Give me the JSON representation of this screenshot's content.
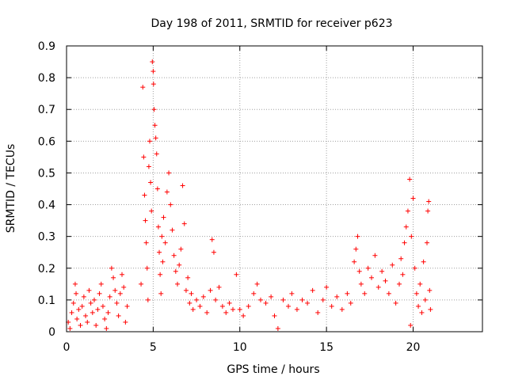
{
  "chart_data": {
    "type": "scatter",
    "title": "Day 198 of 2011, SRMTID for receiver p623",
    "xlabel": "GPS time / hours",
    "ylabel": "SRMTID / TECUs",
    "xlim": [
      0,
      24
    ],
    "ylim": [
      0,
      0.9
    ],
    "xticks": [
      0,
      5,
      10,
      15,
      20
    ],
    "xtick_labels": [
      "0",
      "5",
      "10",
      "15",
      "20"
    ],
    "yticks": [
      0,
      0.1,
      0.2,
      0.3,
      0.4,
      0.5,
      0.6,
      0.7,
      0.8,
      0.9
    ],
    "ytick_labels": [
      "0",
      "0.1",
      "0.2",
      "0.3",
      "0.4",
      "0.5",
      "0.6",
      "0.7",
      "0.8",
      "0.9"
    ],
    "grid": true,
    "marker": "plus",
    "marker_color": "#ff0000",
    "series": [
      {
        "name": "SRMTID",
        "points": [
          [
            0.1,
            0.03
          ],
          [
            0.2,
            0.01
          ],
          [
            0.3,
            0.06
          ],
          [
            0.4,
            0.09
          ],
          [
            0.5,
            0.15
          ],
          [
            0.55,
            0.12
          ],
          [
            0.6,
            0.04
          ],
          [
            0.7,
            0.07
          ],
          [
            0.8,
            0.02
          ],
          [
            0.9,
            0.08
          ],
          [
            1.0,
            0.11
          ],
          [
            1.1,
            0.05
          ],
          [
            1.2,
            0.03
          ],
          [
            1.3,
            0.13
          ],
          [
            1.4,
            0.09
          ],
          [
            1.5,
            0.06
          ],
          [
            1.6,
            0.1
          ],
          [
            1.7,
            0.02
          ],
          [
            1.8,
            0.07
          ],
          [
            1.9,
            0.12
          ],
          [
            2.0,
            0.15
          ],
          [
            2.1,
            0.08
          ],
          [
            2.2,
            0.04
          ],
          [
            2.3,
            0.01
          ],
          [
            2.4,
            0.06
          ],
          [
            2.5,
            0.11
          ],
          [
            2.6,
            0.2
          ],
          [
            2.7,
            0.17
          ],
          [
            2.8,
            0.13
          ],
          [
            2.9,
            0.09
          ],
          [
            3.0,
            0.05
          ],
          [
            3.1,
            0.12
          ],
          [
            3.2,
            0.18
          ],
          [
            3.3,
            0.14
          ],
          [
            3.4,
            0.03
          ],
          [
            3.5,
            0.08
          ],
          [
            4.3,
            0.15
          ],
          [
            4.4,
            0.77
          ],
          [
            4.45,
            0.55
          ],
          [
            4.5,
            0.43
          ],
          [
            4.55,
            0.35
          ],
          [
            4.6,
            0.28
          ],
          [
            4.65,
            0.2
          ],
          [
            4.7,
            0.1
          ],
          [
            4.75,
            0.52
          ],
          [
            4.8,
            0.6
          ],
          [
            4.85,
            0.47
          ],
          [
            4.9,
            0.38
          ],
          [
            4.95,
            0.85
          ],
          [
            5.0,
            0.82
          ],
          [
            5.02,
            0.78
          ],
          [
            5.05,
            0.7
          ],
          [
            5.1,
            0.65
          ],
          [
            5.15,
            0.61
          ],
          [
            5.2,
            0.56
          ],
          [
            5.25,
            0.45
          ],
          [
            5.3,
            0.33
          ],
          [
            5.35,
            0.25
          ],
          [
            5.4,
            0.18
          ],
          [
            5.45,
            0.12
          ],
          [
            5.5,
            0.3
          ],
          [
            5.55,
            0.22
          ],
          [
            5.6,
            0.36
          ],
          [
            5.7,
            0.28
          ],
          [
            5.8,
            0.44
          ],
          [
            5.9,
            0.5
          ],
          [
            6.0,
            0.4
          ],
          [
            6.1,
            0.32
          ],
          [
            6.2,
            0.24
          ],
          [
            6.3,
            0.19
          ],
          [
            6.4,
            0.15
          ],
          [
            6.5,
            0.21
          ],
          [
            6.6,
            0.26
          ],
          [
            6.7,
            0.46
          ],
          [
            6.8,
            0.34
          ],
          [
            6.9,
            0.13
          ],
          [
            7.0,
            0.17
          ],
          [
            7.1,
            0.09
          ],
          [
            7.2,
            0.12
          ],
          [
            7.3,
            0.07
          ],
          [
            7.5,
            0.1
          ],
          [
            7.7,
            0.08
          ],
          [
            7.9,
            0.11
          ],
          [
            8.1,
            0.06
          ],
          [
            8.3,
            0.13
          ],
          [
            8.4,
            0.29
          ],
          [
            8.5,
            0.25
          ],
          [
            8.6,
            0.1
          ],
          [
            8.8,
            0.14
          ],
          [
            9.0,
            0.08
          ],
          [
            9.2,
            0.06
          ],
          [
            9.4,
            0.09
          ],
          [
            9.6,
            0.07
          ],
          [
            9.8,
            0.18
          ],
          [
            10.0,
            0.07
          ],
          [
            10.2,
            0.05
          ],
          [
            10.5,
            0.08
          ],
          [
            10.8,
            0.12
          ],
          [
            11.0,
            0.15
          ],
          [
            11.2,
            0.1
          ],
          [
            11.5,
            0.09
          ],
          [
            11.8,
            0.11
          ],
          [
            12.0,
            0.05
          ],
          [
            12.2,
            0.01
          ],
          [
            12.5,
            0.1
          ],
          [
            12.8,
            0.08
          ],
          [
            13.0,
            0.12
          ],
          [
            13.3,
            0.07
          ],
          [
            13.6,
            0.1
          ],
          [
            13.9,
            0.09
          ],
          [
            14.2,
            0.13
          ],
          [
            14.5,
            0.06
          ],
          [
            14.8,
            0.1
          ],
          [
            15.0,
            0.14
          ],
          [
            15.3,
            0.08
          ],
          [
            15.6,
            0.11
          ],
          [
            15.9,
            0.07
          ],
          [
            16.2,
            0.12
          ],
          [
            16.4,
            0.09
          ],
          [
            16.6,
            0.22
          ],
          [
            16.7,
            0.26
          ],
          [
            16.8,
            0.3
          ],
          [
            16.9,
            0.19
          ],
          [
            17.0,
            0.15
          ],
          [
            17.2,
            0.12
          ],
          [
            17.4,
            0.2
          ],
          [
            17.6,
            0.17
          ],
          [
            17.8,
            0.24
          ],
          [
            18.0,
            0.14
          ],
          [
            18.2,
            0.19
          ],
          [
            18.4,
            0.16
          ],
          [
            18.6,
            0.12
          ],
          [
            18.8,
            0.21
          ],
          [
            19.0,
            0.09
          ],
          [
            19.2,
            0.15
          ],
          [
            19.3,
            0.23
          ],
          [
            19.4,
            0.18
          ],
          [
            19.5,
            0.28
          ],
          [
            19.6,
            0.33
          ],
          [
            19.7,
            0.38
          ],
          [
            19.8,
            0.48
          ],
          [
            19.85,
            0.02
          ],
          [
            19.9,
            0.3
          ],
          [
            20.0,
            0.42
          ],
          [
            20.1,
            0.2
          ],
          [
            20.2,
            0.12
          ],
          [
            20.3,
            0.08
          ],
          [
            20.4,
            0.15
          ],
          [
            20.5,
            0.06
          ],
          [
            20.6,
            0.22
          ],
          [
            20.7,
            0.1
          ],
          [
            20.8,
            0.28
          ],
          [
            20.85,
            0.38
          ],
          [
            20.9,
            0.41
          ],
          [
            20.95,
            0.13
          ],
          [
            21.0,
            0.07
          ]
        ]
      }
    ]
  }
}
